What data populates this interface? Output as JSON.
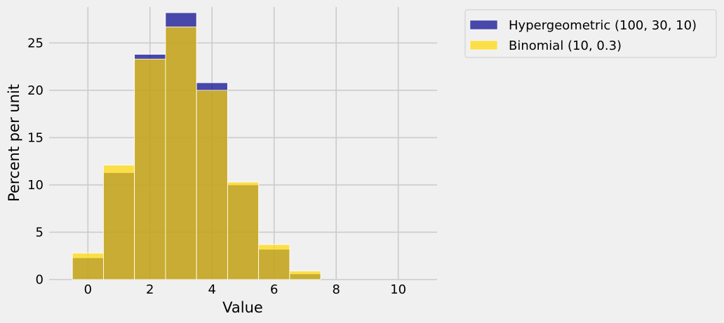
{
  "chart_data": {
    "type": "bar",
    "xlabel": "Value",
    "ylabel": "Percent per unit",
    "xlim": [
      -1.25,
      11.25
    ],
    "ylim": [
      0,
      28.8
    ],
    "xticks": [
      0,
      2,
      4,
      6,
      8,
      10
    ],
    "yticks": [
      0,
      5,
      10,
      15,
      20,
      25
    ],
    "grid": true,
    "legend_position": "outside-top-right",
    "bin_edges": [
      -0.5,
      0.5,
      1.5,
      2.5,
      3.5,
      4.5,
      5.5,
      6.5,
      7.5
    ],
    "x": [
      0,
      1,
      2,
      3,
      4,
      5,
      6,
      7
    ],
    "series": [
      {
        "name": "Hypergeometric (100, 30, 10)",
        "color": "#00008B",
        "values": [
          2.3,
          11.3,
          23.8,
          28.2,
          20.8,
          10.0,
          3.2,
          0.6
        ]
      },
      {
        "name": "Binomial (10, 0.3)",
        "color": "#FFD700",
        "values": [
          2.8,
          12.1,
          23.3,
          26.7,
          20.0,
          10.3,
          3.7,
          0.9
        ]
      }
    ]
  }
}
